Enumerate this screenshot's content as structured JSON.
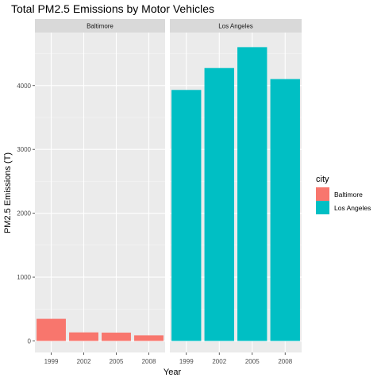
{
  "chart_data": {
    "type": "bar",
    "title": "Total PM2.5 Emissions by Motor Vehicles",
    "xlabel": "Year",
    "ylabel": "PM2.5 Emissions (T)",
    "categories": [
      "1999",
      "2002",
      "2005",
      "2008"
    ],
    "y_ticks": [
      "0",
      "1000",
      "2000",
      "3000",
      "4000"
    ],
    "ylim": [
      -180,
      4830
    ],
    "grid": true,
    "legend_position": "right",
    "facets": [
      {
        "name": "Baltimore",
        "color": "#F8766D",
        "values": [
          346.8,
          134.3,
          130.4,
          88.3
        ]
      },
      {
        "name": "Los Angeles",
        "color": "#00BFC4",
        "values": [
          3931.1,
          4274.0,
          4601.4,
          4101.3
        ]
      }
    ],
    "legend": {
      "title": "city",
      "items": [
        {
          "label": "Baltimore",
          "color": "#F8766D"
        },
        {
          "label": "Los Angeles",
          "color": "#00BFC4"
        }
      ]
    }
  }
}
